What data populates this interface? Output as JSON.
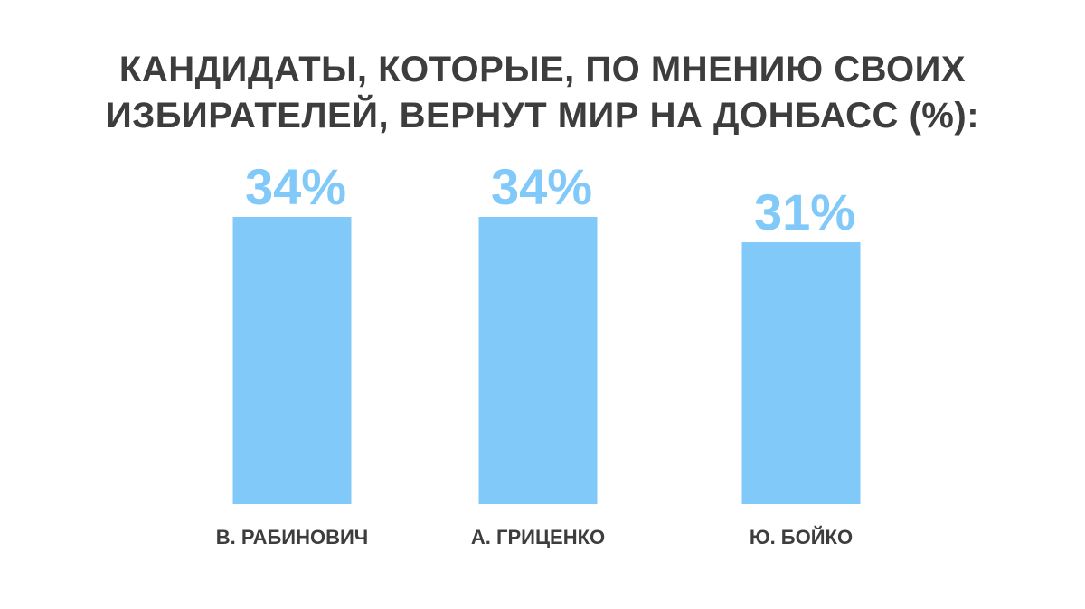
{
  "chart_data": {
    "type": "bar",
    "title_lines": [
      "КАНДИДАТЫ, КОТОРЫЕ, ПО МНЕНИЮ СВОИХ",
      "ИЗБИРАТЕЛЕЙ, ВЕРНУТ МИР НА ДОНБАСС (%):"
    ],
    "categories": [
      "В. РАБИНОВИЧ",
      "А. ГРИЦЕНКО",
      "Ю. БОЙКО"
    ],
    "values": [
      34,
      34,
      31
    ],
    "value_labels": [
      "34%",
      "34%",
      "31%"
    ],
    "ylim": [
      0,
      34
    ],
    "grid": false,
    "colors": {
      "bar": "#80c9f9",
      "value_label": "#80c9f9",
      "text": "#3d3d3d",
      "background": "#ffffff"
    }
  }
}
